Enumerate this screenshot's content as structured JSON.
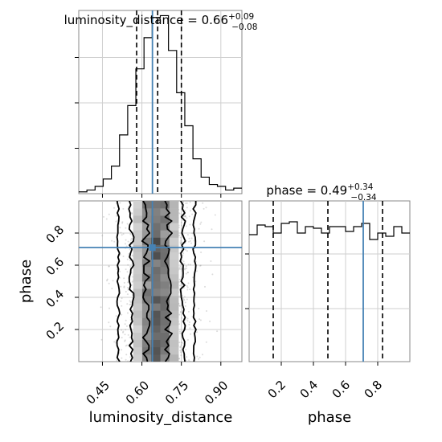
{
  "chart_data": {
    "type": "corner",
    "grid": true,
    "truth_color": "#4682b4",
    "hist_color": "#000000",
    "parameters": [
      {
        "name": "luminosity_distance",
        "xlabel": "luminosity_distance",
        "xlim": [
          0.36,
          0.98
        ],
        "xticks": [
          "0.45",
          "0.60",
          "0.75",
          "0.90"
        ],
        "title_main": "luminosity_distance = 0.66",
        "title_plus": "+0.09",
        "title_minus": "−0.08",
        "quantiles": [
          0.58,
          0.66,
          0.75
        ],
        "truth": 0.64,
        "hist": {
          "edges": [
            0.36,
            0.391,
            0.422,
            0.453,
            0.484,
            0.515,
            0.546,
            0.577,
            0.608,
            0.639,
            0.67,
            0.701,
            0.732,
            0.763,
            0.794,
            0.825,
            0.856,
            0.887,
            0.918,
            0.949,
            0.98
          ],
          "counts": [
            1,
            2,
            4,
            8,
            15,
            32,
            48,
            68,
            85,
            96,
            97,
            78,
            55,
            37,
            19,
            9,
            5,
            4,
            2,
            3
          ]
        }
      },
      {
        "name": "phase",
        "xlabel": "phase",
        "ylabel": "phase",
        "xlim": [
          0.0,
          1.0
        ],
        "xticks": [
          "0.2",
          "0.4",
          "0.6",
          "0.8"
        ],
        "yticks": [
          "0.2",
          "0.4",
          "0.6",
          "0.8"
        ],
        "title_main": "phase = 0.49",
        "title_plus": "+0.34",
        "title_minus": "−0.34",
        "quantiles": [
          0.15,
          0.49,
          0.83
        ],
        "truth": 0.71,
        "hist": {
          "edges": [
            0.0,
            0.05,
            0.1,
            0.15,
            0.2,
            0.25,
            0.3,
            0.35,
            0.4,
            0.45,
            0.5,
            0.55,
            0.6,
            0.65,
            0.7,
            0.75,
            0.8,
            0.85,
            0.9,
            0.95,
            1.0
          ],
          "counts": [
            0.79,
            0.85,
            0.84,
            0.8,
            0.86,
            0.87,
            0.8,
            0.84,
            0.83,
            0.8,
            0.84,
            0.84,
            0.81,
            0.84,
            0.86,
            0.76,
            0.8,
            0.78,
            0.84,
            0.8
          ]
        }
      }
    ],
    "hist2d": {
      "x_param": "luminosity_distance",
      "y_param": "phase",
      "truth_point": [
        0.64,
        0.71
      ],
      "contour_levels": 4
    }
  }
}
